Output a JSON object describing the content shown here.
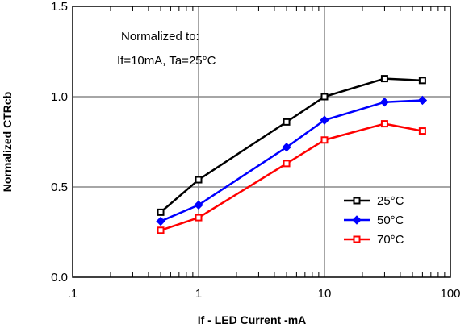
{
  "chart_data": {
    "type": "line",
    "xlabel": "If - LED Current -mA",
    "ylabel": "Normalized CTRcb",
    "xscale": "log",
    "xlim": [
      0.1,
      100
    ],
    "ylim": [
      0.0,
      1.5
    ],
    "xtick_labels": [
      ".1",
      "1",
      "10",
      "100"
    ],
    "xtick_values": [
      0.1,
      1,
      10,
      100
    ],
    "ytick_labels": [
      "0.0",
      "0.5",
      "1.0",
      "1.5"
    ],
    "ytick_values": [
      0.0,
      0.5,
      1.0,
      1.5
    ],
    "grid": true,
    "annotation": [
      "Normalized to:",
      "If=10mA, Ta=25°C"
    ],
    "legend_position": "right",
    "series": [
      {
        "name": "25°C",
        "color": "#000000",
        "marker": "square-open",
        "x": [
          0.5,
          1,
          5,
          10,
          30,
          60
        ],
        "y": [
          0.36,
          0.54,
          0.86,
          1.0,
          1.1,
          1.09
        ]
      },
      {
        "name": "50°C",
        "color": "#0000ff",
        "marker": "diamond",
        "x": [
          0.5,
          1,
          5,
          10,
          30,
          60
        ],
        "y": [
          0.31,
          0.4,
          0.72,
          0.87,
          0.97,
          0.98
        ]
      },
      {
        "name": "70°C",
        "color": "#ff0000",
        "marker": "square-open",
        "x": [
          0.5,
          1,
          5,
          10,
          30,
          60
        ],
        "y": [
          0.26,
          0.33,
          0.63,
          0.76,
          0.85,
          0.81
        ]
      }
    ]
  }
}
